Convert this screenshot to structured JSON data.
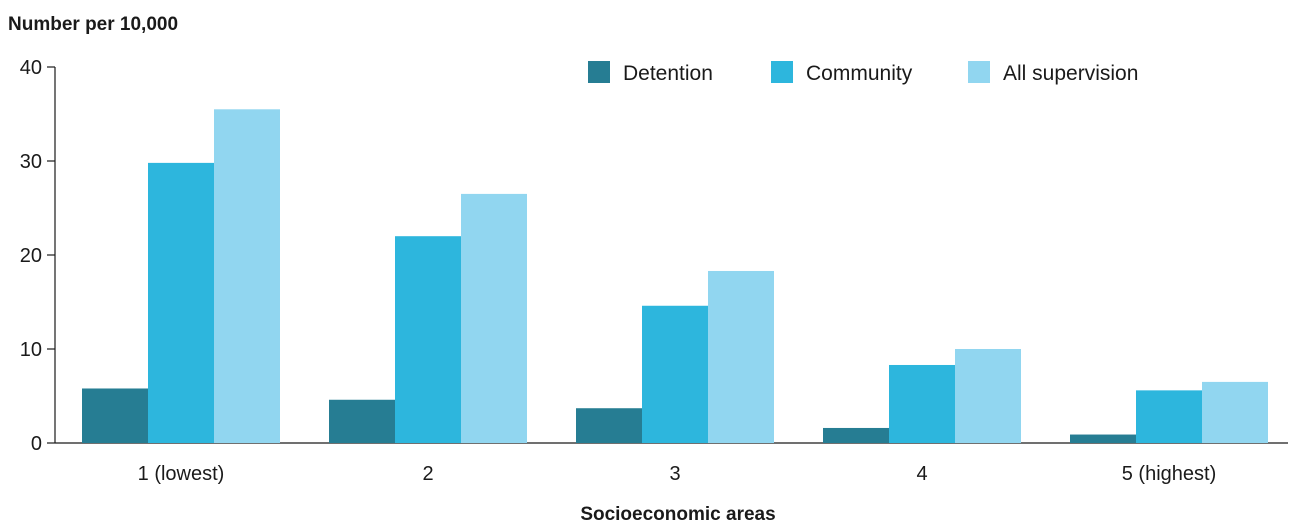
{
  "chart_data": {
    "type": "bar",
    "ylabel": "Number per 10,000",
    "xlabel": "Socioeconomic areas",
    "categories": [
      "1 (lowest)",
      "2",
      "3",
      "4",
      "5 (highest)"
    ],
    "series": [
      {
        "name": "Detention",
        "color": "#267d93",
        "values": [
          5.8,
          4.6,
          3.7,
          1.6,
          0.9
        ]
      },
      {
        "name": "Community",
        "color": "#2db6dd",
        "values": [
          29.8,
          22.0,
          14.6,
          8.3,
          5.6
        ]
      },
      {
        "name": "All supervision",
        "color": "#91d6f0",
        "values": [
          35.5,
          26.5,
          18.3,
          10.0,
          6.5
        ]
      }
    ],
    "ylim": [
      0,
      40
    ],
    "yticks": [
      0,
      10,
      20,
      30,
      40
    ],
    "legend": "top-right",
    "grid": false
  }
}
